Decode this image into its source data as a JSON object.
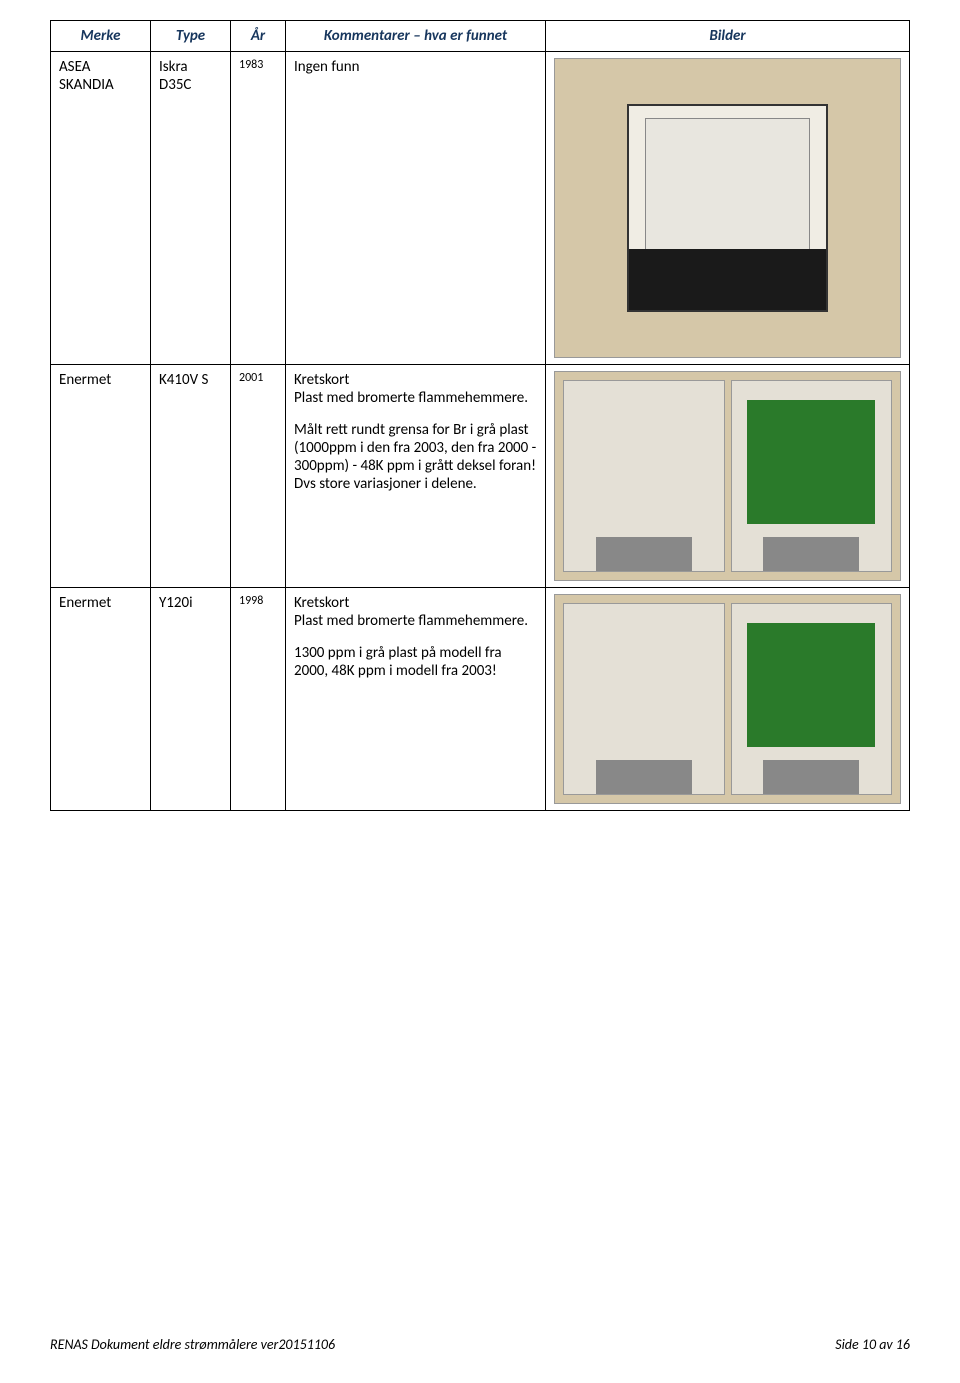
{
  "headers": {
    "merke": "Merke",
    "type": "Type",
    "ar": "År",
    "kommentarer": "Kommentarer – hva er funnet",
    "bilder": "Bilder"
  },
  "rows": [
    {
      "merke": "ASEA SKANDIA",
      "type": "Iskra D35C",
      "year": "1983",
      "comment_p1": "Ingen funn",
      "comment_p2": "",
      "image_alt": "electricity meter photo"
    },
    {
      "merke": "Enermet",
      "type": "K410V S",
      "year": "2001",
      "comment_p1": "Kretskort\nPlast med bromerte flammehemmere.",
      "comment_p2": "Målt rett rundt grensa for Br i grå plast (1000ppm i den fra 2003, den fra 2000 - 300ppm) - 48K ppm i grått deksel foran! Dvs store variasjoner i delene.",
      "image_alt": "two meter units photo"
    },
    {
      "merke": "Enermet",
      "type": "Y120i",
      "year": "1998",
      "comment_p1": "Kretskort\nPlast med bromerte flammehemmere.",
      "comment_p2": "1300 ppm i grå plast på modell fra 2000, 48K ppm i modell fra 2003!",
      "image_alt": "two meter units photo"
    }
  ],
  "footer": {
    "left": "RENAS Dokument eldre strømmålere ver20151106",
    "right": "Side 10 av 16"
  },
  "colors": {
    "header_text": "#17365d",
    "border": "#000000",
    "background": "#ffffff"
  }
}
